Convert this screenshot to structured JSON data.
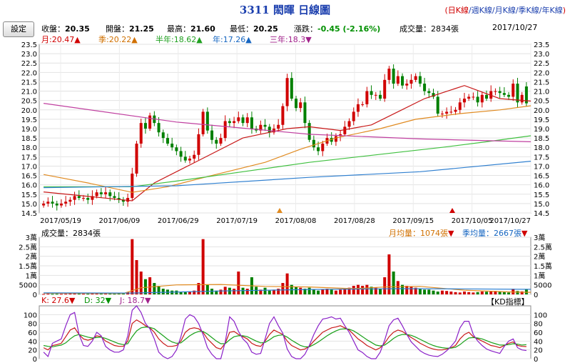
{
  "header": {
    "title": "3311 閎暉  日線圖",
    "period_open": "(",
    "period_close": ")",
    "periods": [
      "日K線",
      "週K線",
      "月K線",
      "季K線",
      "年K線"
    ],
    "settings_label": "設定"
  },
  "quote": {
    "close_label": "收盤：",
    "close": "20.35",
    "open_label": "開盤：",
    "open": "21.25",
    "high_label": "最高：",
    "high": "21.60",
    "low_label": "最低：",
    "low": "20.25",
    "change_label": "漲跌：",
    "change": "-0.45 (-2.16%)",
    "volume_label": "成交量：",
    "volume": "2834張",
    "date": "2017/10/27"
  },
  "ma_legend": [
    {
      "label": "月:20.47",
      "arrow": "▲",
      "color": "#d00000"
    },
    {
      "label": "季:20.22",
      "arrow": "▲",
      "color": "#d07000"
    },
    {
      "label": "半年:18.62",
      "arrow": "▲",
      "color": "#20a020"
    },
    {
      "label": "年:17.26",
      "arrow": "▲",
      "color": "#1565c0"
    },
    {
      "label": "三年:18.3",
      "arrow": "▼",
      "color": "#a0208a"
    }
  ],
  "volume_legend": {
    "volume": "成交量：2834張",
    "month_avg": "月均量：1074張",
    "month_arrow": "▼",
    "quarter_avg": "季均量：2667張",
    "quarter_arrow": "▼"
  },
  "kd_legend": {
    "k": "K: 27.6",
    "k_arrow": "▼",
    "d": "D: 32",
    "d_arrow": "▼",
    "j": "J: 18.7",
    "j_arrow": "▼",
    "badge": "【KD指標】"
  },
  "chart_data": [
    {
      "type": "candlestick",
      "title": "3311 閎暉 日線圖",
      "ylim": [
        14.5,
        23.5
      ],
      "y_ticks": [
        14.5,
        15.0,
        15.5,
        16.0,
        16.5,
        17.0,
        17.5,
        18.0,
        18.5,
        19.0,
        19.5,
        20.0,
        20.5,
        21.0,
        21.5,
        22.0,
        22.5,
        23.0,
        23.5
      ],
      "x_tick_labels": [
        "2017/05/19",
        "2017/06/09",
        "2017/06/29",
        "2017/07/19",
        "2017/08/08",
        "2017/08/28",
        "2017/09/15",
        "2017/10/05",
        "2017/10/27"
      ],
      "up_color": "#d00000",
      "down_color": "#008000",
      "closes": [
        15.0,
        15.1,
        15.0,
        14.9,
        15.0,
        15.1,
        15.2,
        15.4,
        15.3,
        15.3,
        15.2,
        15.4,
        15.6,
        15.5,
        15.6,
        15.4,
        15.3,
        15.2,
        15.1,
        15.3,
        16.6,
        18.2,
        19.3,
        19.0,
        19.7,
        19.3,
        18.8,
        18.5,
        18.2,
        18.0,
        17.8,
        17.5,
        17.3,
        17.4,
        17.6,
        18.7,
        19.9,
        18.9,
        18.4,
        18.2,
        18.5,
        19.4,
        19.3,
        19.4,
        19.6,
        19.3,
        19.6,
        19.0,
        18.9,
        19.2,
        19.1,
        18.8,
        19.0,
        19.2,
        20.2,
        21.7,
        20.6,
        20.1,
        20.4,
        19.3,
        18.4,
        18.0,
        17.8,
        18.2,
        18.5,
        18.3,
        18.6,
        18.7,
        19.1,
        19.4,
        19.9,
        20.3,
        20.3,
        21.0,
        20.8,
        20.8,
        20.6,
        21.6,
        22.2,
        21.4,
        21.8,
        21.3,
        21.4,
        21.6,
        21.8,
        21.4,
        21.0,
        20.9,
        20.7,
        19.8,
        19.8,
        19.9,
        19.9,
        20.0,
        20.4,
        20.6,
        20.7,
        20.7,
        20.4,
        20.8,
        20.6,
        21.0,
        21.0,
        20.9,
        20.8,
        20.7,
        21.4,
        20.4,
        20.8,
        20.35
      ],
      "ma_lines": [
        {
          "name": "月",
          "color": "#c81818",
          "points": [
            [
              0,
              15.62
            ],
            [
              20,
              15.15
            ],
            [
              25,
              16.1
            ],
            [
              35,
              17.3
            ],
            [
              45,
              18.5
            ],
            [
              55,
              19.0
            ],
            [
              60,
              19.1
            ],
            [
              67,
              18.9
            ],
            [
              74,
              19.2
            ],
            [
              80,
              19.9
            ],
            [
              86,
              20.6
            ],
            [
              95,
              21.3
            ],
            [
              103,
              20.6
            ],
            [
              110,
              20.47
            ]
          ]
        },
        {
          "name": "季",
          "color": "#e08a20",
          "points": [
            [
              0,
              16.55
            ],
            [
              10,
              16.1
            ],
            [
              20,
              15.6
            ],
            [
              28,
              15.9
            ],
            [
              38,
              16.5
            ],
            [
              50,
              17.2
            ],
            [
              58,
              17.9
            ],
            [
              66,
              18.5
            ],
            [
              76,
              19.0
            ],
            [
              84,
              19.5
            ],
            [
              94,
              19.8
            ],
            [
              103,
              20.0
            ],
            [
              110,
              20.22
            ]
          ]
        },
        {
          "name": "半年",
          "color": "#40c040",
          "points": [
            [
              0,
              15.9
            ],
            [
              20,
              15.9
            ],
            [
              30,
              16.2
            ],
            [
              45,
              16.7
            ],
            [
              60,
              17.2
            ],
            [
              75,
              17.6
            ],
            [
              90,
              18.0
            ],
            [
              100,
              18.3
            ],
            [
              110,
              18.62
            ]
          ]
        },
        {
          "name": "年",
          "color": "#3080d0",
          "points": [
            [
              0,
              15.85
            ],
            [
              30,
              15.95
            ],
            [
              60,
              16.4
            ],
            [
              85,
              16.7
            ],
            [
              110,
              17.26
            ]
          ]
        },
        {
          "name": "三年",
          "color": "#c040a0",
          "points": [
            [
              0,
              20.35
            ],
            [
              30,
              19.35
            ],
            [
              60,
              18.7
            ],
            [
              85,
              18.45
            ],
            [
              110,
              18.3
            ]
          ]
        }
      ]
    },
    {
      "type": "bar",
      "title": "成交量",
      "ylim": [
        0,
        30000
      ],
      "y_tick_labels": [
        "0",
        "5000",
        "1萬",
        "1.5萬",
        "2萬",
        "2.5萬",
        "3萬"
      ],
      "values": [
        200,
        300,
        250,
        300,
        250,
        300,
        400,
        500,
        350,
        300,
        300,
        400,
        500,
        450,
        400,
        350,
        300,
        400,
        500,
        1200,
        29000,
        18000,
        12000,
        8000,
        9000,
        6000,
        4500,
        3000,
        2500,
        2000,
        2000,
        1500,
        1200,
        1500,
        2000,
        6000,
        29000,
        5000,
        3000,
        2000,
        2500,
        4000,
        3500,
        3000,
        12000,
        3500,
        3000,
        9000,
        4000,
        2500,
        3500,
        2000,
        2500,
        3000,
        6000,
        11000,
        5000,
        4000,
        3500,
        3000,
        3500,
        2500,
        2000,
        2500,
        3000,
        2500,
        2000,
        2500,
        3000,
        3500,
        4500,
        5000,
        4500,
        5000,
        4000,
        3500,
        3000,
        9000,
        21000,
        12000,
        7000,
        5000,
        4500,
        4000,
        3500,
        3000,
        2500,
        2500,
        2000,
        1500,
        2000,
        1800,
        1500,
        1200,
        1000,
        1500,
        1200,
        1000,
        1200,
        1500,
        1400,
        1600,
        1800,
        1500,
        1200,
        1000,
        3000,
        1800,
        1600,
        2834
      ],
      "avg_lines": [
        {
          "name": "月均量",
          "color": "#e08a20",
          "points": [
            [
              0,
              600
            ],
            [
              18,
              500
            ],
            [
              22,
              3500
            ],
            [
              30,
              5000
            ],
            [
              40,
              5200
            ],
            [
              50,
              4200
            ],
            [
              60,
              3900
            ],
            [
              70,
              3000
            ],
            [
              78,
              4000
            ],
            [
              85,
              4200
            ],
            [
              95,
              2200
            ],
            [
              105,
              1300
            ],
            [
              110,
              1074
            ]
          ]
        },
        {
          "name": "季均量",
          "color": "#3080d0",
          "points": [
            [
              0,
              800
            ],
            [
              20,
              700
            ],
            [
              40,
              1800
            ],
            [
              60,
              2600
            ],
            [
              80,
              3000
            ],
            [
              95,
              2900
            ],
            [
              110,
              2667
            ]
          ]
        }
      ]
    },
    {
      "type": "line",
      "title": "KD指標",
      "ylim": [
        0,
        120
      ],
      "y_ticks": [
        0,
        20,
        40,
        60,
        80,
        100
      ],
      "series": [
        {
          "name": "K",
          "color": "#c81818",
          "values": [
            25,
            20,
            30,
            32,
            35,
            50,
            65,
            70,
            55,
            45,
            42,
            45,
            52,
            50,
            40,
            35,
            30,
            28,
            28,
            40,
            80,
            88,
            82,
            75,
            70,
            60,
            45,
            35,
            28,
            28,
            30,
            40,
            60,
            68,
            70,
            68,
            60,
            45,
            35,
            25,
            22,
            35,
            60,
            62,
            55,
            50,
            45,
            35,
            30,
            28,
            40,
            55,
            65,
            60,
            55,
            40,
            30,
            25,
            20,
            22,
            28,
            40,
            50,
            60,
            65,
            70,
            72,
            75,
            70,
            65,
            55,
            45,
            38,
            30,
            25,
            20,
            25,
            35,
            50,
            60,
            65,
            62,
            55,
            48,
            42,
            35,
            30,
            25,
            22,
            20,
            20,
            22,
            25,
            30,
            45,
            55,
            60,
            50,
            45,
            40,
            35,
            30,
            28,
            25,
            30,
            35,
            38,
            30,
            28,
            27.6
          ]
        },
        {
          "name": "D",
          "color": "#18a018",
          "values": [
            30,
            28,
            27,
            29,
            31,
            36,
            45,
            52,
            55,
            52,
            49,
            47,
            48,
            49,
            46,
            42,
            38,
            34,
            32,
            34,
            50,
            63,
            70,
            72,
            71,
            68,
            60,
            52,
            44,
            38,
            35,
            36,
            44,
            52,
            58,
            62,
            62,
            56,
            48,
            40,
            34,
            34,
            43,
            50,
            52,
            52,
            50,
            45,
            40,
            36,
            37,
            43,
            50,
            53,
            54,
            49,
            42,
            36,
            30,
            27,
            27,
            32,
            38,
            45,
            52,
            58,
            63,
            67,
            68,
            67,
            63,
            57,
            50,
            43,
            37,
            31,
            29,
            31,
            38,
            46,
            52,
            55,
            55,
            53,
            49,
            44,
            39,
            34,
            30,
            27,
            25,
            24,
            24,
            26,
            32,
            40,
            47,
            48,
            47,
            45,
            41,
            37,
            34,
            31,
            31,
            32,
            34,
            33,
            31,
            32
          ]
        },
        {
          "name": "J",
          "color": "#8a20c8",
          "values": [
            15,
            5,
            35,
            40,
            45,
            75,
            100,
            105,
            55,
            30,
            28,
            40,
            60,
            52,
            28,
            20,
            15,
            15,
            20,
            52,
            110,
            120,
            105,
            80,
            68,
            45,
            15,
            5,
            0,
            5,
            20,
            50,
            90,
            100,
            95,
            80,
            55,
            25,
            10,
            0,
            0,
            38,
            95,
            85,
            62,
            45,
            35,
            15,
            10,
            12,
            45,
            80,
            95,
            75,
            58,
            22,
            5,
            0,
            0,
            10,
            30,
            55,
            75,
            90,
            92,
            95,
            90,
            92,
            75,
            60,
            40,
            20,
            14,
            5,
            0,
            0,
            15,
            42,
            75,
            88,
            92,
            75,
            55,
            38,
            28,
            18,
            12,
            8,
            6,
            5,
            10,
            18,
            28,
            40,
            70,
            85,
            85,
            55,
            40,
            30,
            22,
            18,
            15,
            12,
            28,
            40,
            45,
            25,
            20,
            18.7
          ]
        }
      ]
    }
  ]
}
